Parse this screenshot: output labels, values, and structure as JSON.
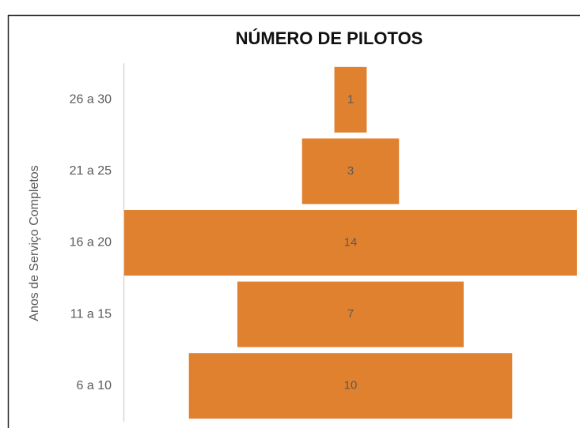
{
  "chart_data": {
    "type": "funnel",
    "title": "NÚMERO DE PILOTOS",
    "y_label": "Anos de Serviço Completos",
    "categories": [
      "26 a 30",
      "21 a 25",
      "16 a 20",
      "11 a 15",
      "6 a 10"
    ],
    "values": [
      1,
      3,
      14,
      7,
      10
    ],
    "color": "#e0812f"
  }
}
